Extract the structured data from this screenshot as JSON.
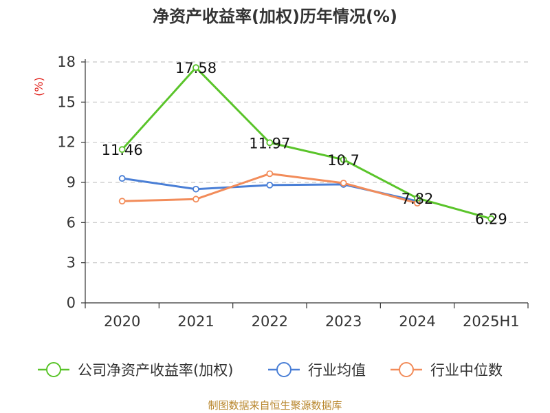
{
  "chart_data": {
    "type": "line",
    "title": "净资产收益率(加权)历年情况(%)",
    "ylabel": "(%)",
    "categories": [
      "2020",
      "2021",
      "2022",
      "2023",
      "2024",
      "2025H1"
    ],
    "ylim": [
      0,
      18
    ],
    "yticks": [
      0,
      3,
      6,
      9,
      12,
      15,
      18
    ],
    "grid": true,
    "legend_position": "bottom",
    "series": [
      {
        "name": "公司净资产收益率(加权)",
        "color": "#5ac42a",
        "values": [
          11.46,
          17.58,
          11.97,
          10.7,
          7.82,
          6.29
        ],
        "labels": [
          "11.46",
          "17.58",
          "11.97",
          "10.7",
          "7.82",
          "6.29"
        ]
      },
      {
        "name": "行业均值",
        "color": "#4a7fd6",
        "values": [
          9.3,
          8.5,
          8.8,
          8.85,
          7.6,
          null
        ]
      },
      {
        "name": "行业中位数",
        "color": "#f28c5a",
        "values": [
          7.6,
          7.75,
          9.65,
          8.95,
          7.45,
          null
        ]
      }
    ]
  },
  "source": "制图数据来自恒生聚源数据库"
}
